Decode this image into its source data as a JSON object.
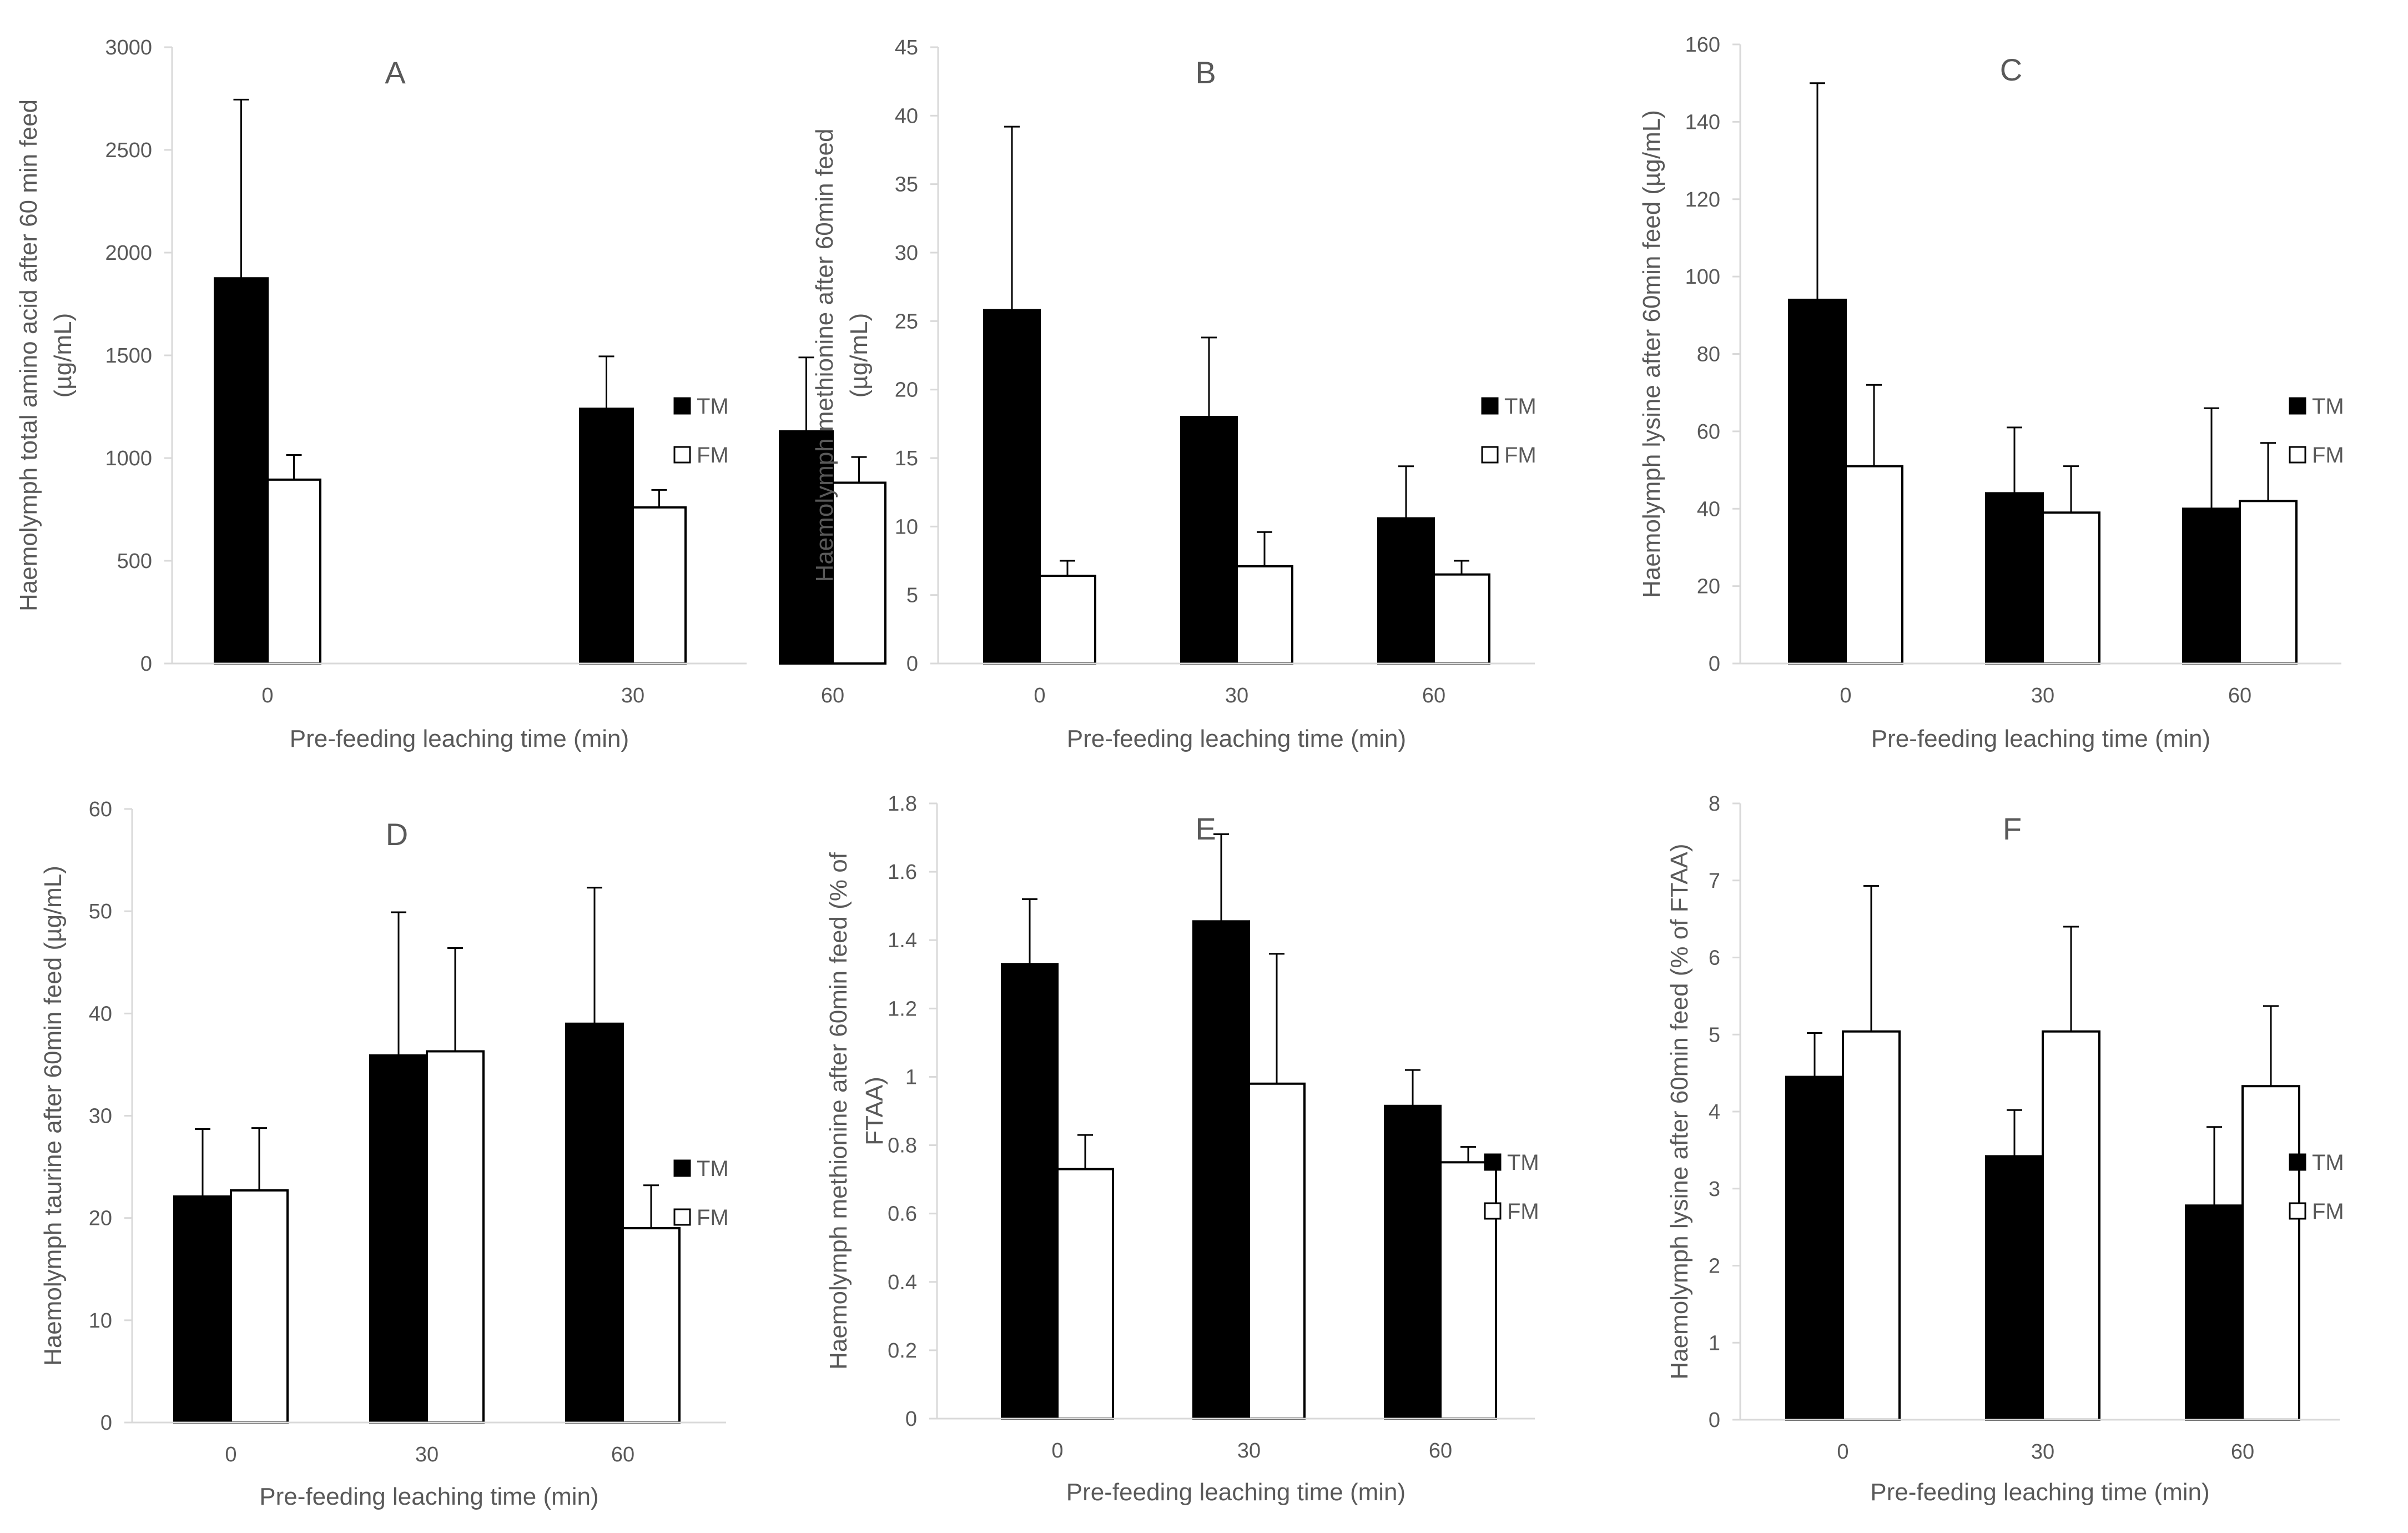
{
  "chart_data": [
    {
      "type": "bar",
      "title": "A",
      "xlabel": "Pre-feeding leaching time (min)",
      "ylabel_lines": [
        "Haemolymph total amino acid after 60 min feed",
        "(µg/mL)"
      ],
      "categories": [
        "0",
        "30",
        "60"
      ],
      "ylim": [
        0,
        3000
      ],
      "yticks": [
        0,
        500,
        1000,
        1500,
        2000,
        2500,
        3000
      ],
      "series": [
        {
          "name": "TM",
          "fill": "#000000",
          "values": [
            1875,
            1240,
            1130
          ],
          "errors": [
            870,
            255,
            360
          ]
        },
        {
          "name": "FM",
          "fill": "#ffffff",
          "values": [
            895,
            760,
            880
          ],
          "errors": [
            120,
            85,
            125
          ]
        }
      ]
    },
    {
      "type": "bar",
      "title": "B",
      "xlabel": "Pre-feeding leaching time (min)",
      "ylabel_lines": [
        "Haemolymph methionine after 60min feed",
        "(µg/mL)"
      ],
      "categories": [
        "0",
        "30",
        "60"
      ],
      "ylim": [
        0,
        45
      ],
      "yticks": [
        0,
        5,
        10,
        15,
        20,
        25,
        30,
        35,
        40,
        45
      ],
      "series": [
        {
          "name": "TM",
          "fill": "#000000",
          "values": [
            25.8,
            18.0,
            10.6
          ],
          "errors": [
            13.4,
            5.8,
            3.8
          ]
        },
        {
          "name": "FM",
          "fill": "#ffffff",
          "values": [
            6.4,
            7.1,
            6.5
          ],
          "errors": [
            1.1,
            2.5,
            1.0
          ]
        }
      ]
    },
    {
      "type": "bar",
      "title": "C",
      "xlabel": "Pre-feeding leaching time (min)",
      "ylabel_lines": [
        "Haemolymph lysine after 60min feed (µg/mL)"
      ],
      "categories": [
        "0",
        "30",
        "60"
      ],
      "ylim": [
        0,
        160
      ],
      "yticks": [
        0,
        20,
        40,
        60,
        80,
        100,
        120,
        140,
        160
      ],
      "series": [
        {
          "name": "TM",
          "fill": "#000000",
          "values": [
            94,
            44,
            40
          ],
          "errors": [
            56,
            17,
            26
          ]
        },
        {
          "name": "FM",
          "fill": "#ffffff",
          "values": [
            51,
            39,
            42
          ],
          "errors": [
            21,
            12,
            15
          ]
        }
      ]
    },
    {
      "type": "bar",
      "title": "D",
      "xlabel": "Pre-feeding leaching time (min)",
      "ylabel_lines": [
        "Haemolymph taurine after 60min feed (µg/mL)"
      ],
      "categories": [
        "0",
        "30",
        "60"
      ],
      "ylim": [
        0,
        60
      ],
      "yticks": [
        0,
        10,
        20,
        30,
        40,
        50,
        60
      ],
      "series": [
        {
          "name": "TM",
          "fill": "#000000",
          "values": [
            22.1,
            35.9,
            39.0
          ],
          "errors": [
            6.6,
            14.0,
            13.3
          ]
        },
        {
          "name": "FM",
          "fill": "#ffffff",
          "values": [
            22.7,
            36.3,
            19.0
          ],
          "errors": [
            6.1,
            10.1,
            4.2
          ]
        }
      ]
    },
    {
      "type": "bar",
      "title": "E",
      "xlabel": "Pre-feeding leaching time (min)",
      "ylabel_lines": [
        "Haemolymph methionine after 60min feed (% of",
        "FTAA)"
      ],
      "categories": [
        "0",
        "30",
        "60"
      ],
      "ylim": [
        0,
        1.8
      ],
      "yticks": [
        0,
        0.2,
        0.4,
        0.6,
        0.8,
        1,
        1.2,
        1.4,
        1.6,
        1.8
      ],
      "series": [
        {
          "name": "TM",
          "fill": "#000000",
          "values": [
            1.33,
            1.455,
            0.915
          ],
          "errors": [
            0.19,
            0.255,
            0.105
          ]
        },
        {
          "name": "FM",
          "fill": "#ffffff",
          "values": [
            0.73,
            0.98,
            0.75
          ],
          "errors": [
            0.1,
            0.38,
            0.045
          ]
        }
      ]
    },
    {
      "type": "bar",
      "title": "F",
      "xlabel": "Pre-feeding leaching time (min)",
      "ylabel_lines": [
        "Haemolymph lysine after 60min feed (% of FTAA)"
      ],
      "categories": [
        "0",
        "30",
        "60"
      ],
      "ylim": [
        0,
        8
      ],
      "yticks": [
        0,
        1,
        2,
        3,
        4,
        5,
        6,
        7,
        8
      ],
      "series": [
        {
          "name": "TM",
          "fill": "#000000",
          "values": [
            4.45,
            3.42,
            2.78
          ],
          "errors": [
            0.57,
            0.6,
            1.02
          ]
        },
        {
          "name": "FM",
          "fill": "#ffffff",
          "values": [
            5.04,
            5.04,
            4.33
          ],
          "errors": [
            1.89,
            1.36,
            1.04
          ]
        }
      ]
    }
  ]
}
